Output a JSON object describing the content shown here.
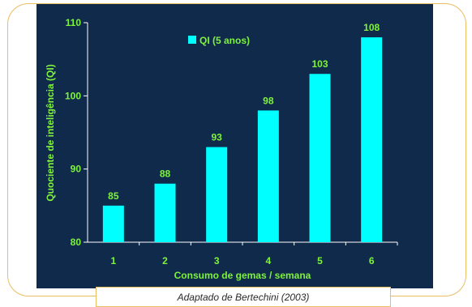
{
  "chart_data": {
    "type": "bar",
    "categories": [
      "1",
      "2",
      "3",
      "4",
      "5",
      "6"
    ],
    "series": [
      {
        "name": "QI (5 anos)",
        "values": [
          85,
          88,
          93,
          98,
          103,
          108
        ]
      }
    ],
    "data_labels": [
      "85",
      "88",
      "93",
      "98",
      "103",
      "108"
    ],
    "xlabel": "Consumo de gemas / semana",
    "ylabel": "Quociente de inteligência (QI)",
    "ylim": [
      80,
      110
    ],
    "yticks": [
      "80",
      "90",
      "100",
      "110"
    ],
    "legend_position": "top-center",
    "grid": false,
    "colors": {
      "bar": "#00ffff",
      "text": "#7ef33a",
      "background": "#102a4b",
      "frame": "#e8bd63"
    }
  },
  "caption": "Adaptado de Bertechini (2003)"
}
